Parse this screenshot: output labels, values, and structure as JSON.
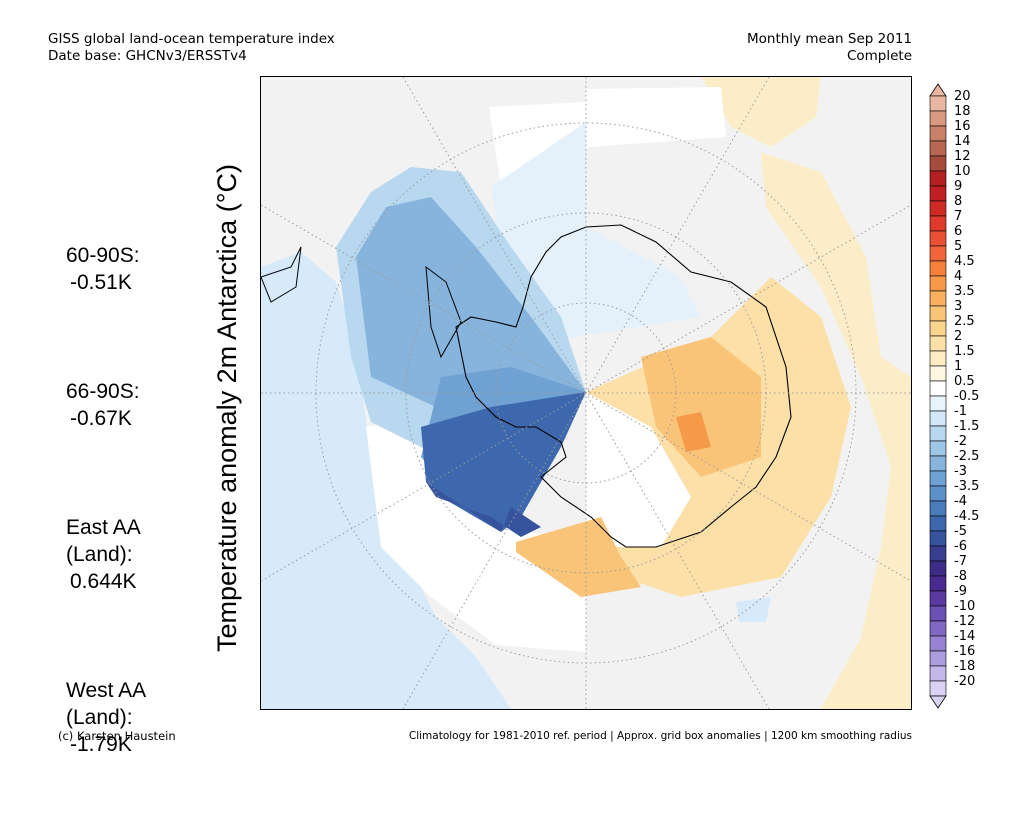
{
  "header": {
    "title_line1": "GISS global land-ocean temperature index",
    "title_line2": "Date base: GHCNv3/ERSSTv4",
    "period_line1": "Monthly mean Sep 2011",
    "period_line2": "Complete"
  },
  "axis_label": "Temperature anomaly 2m Antarctica (°C)",
  "stats": [
    {
      "label": "60-90S:",
      "value": "-0.51K"
    },
    {
      "label": "66-90S:",
      "value": "-0.67K"
    },
    {
      "label": "East AA\n(Land):",
      "value": "0.644K"
    },
    {
      "label": "West AA\n(Land):",
      "value": "-1.79K"
    }
  ],
  "colorbar": {
    "labels": [
      "20",
      "18",
      "16",
      "14",
      "12",
      "10",
      "9",
      "8",
      "7",
      "6",
      "5",
      "4.5",
      "4",
      "3.5",
      "3",
      "2.5",
      "2",
      "1.5",
      "1",
      "0.5",
      "-0.5",
      "-1",
      "-1.5",
      "-2",
      "-2.5",
      "-3",
      "-3.5",
      "-4",
      "-4.5",
      "-5",
      "-6",
      "-7",
      "-8",
      "-9",
      "-10",
      "-12",
      "-14",
      "-16",
      "-18",
      "-20"
    ],
    "colors": [
      "#e9b7a1",
      "#d99a82",
      "#c98068",
      "#b86753",
      "#a54c3e",
      "#b22020",
      "#c02024",
      "#d02a24",
      "#e03a2c",
      "#ea5034",
      "#f0663a",
      "#f4803c",
      "#f69a4a",
      "#f8b060",
      "#fac478",
      "#fbd48e",
      "#fce0a8",
      "#fdecc4",
      "#fdf6e0",
      "#ffffff",
      "#e8f4fc",
      "#d2e8f8",
      "#b8d8f0",
      "#9ec6e6",
      "#86b4dc",
      "#6fa2d2",
      "#5c90c8",
      "#4a7cbc",
      "#3e68ae",
      "#36549e",
      "#3a3e90",
      "#3c2c86",
      "#4a2a90",
      "#5a3aa0",
      "#6c50b4",
      "#8068c4",
      "#9684d2",
      "#ac9ede",
      "#c4b8ea",
      "#dad2f4"
    ]
  },
  "footer": {
    "credit": "(c) Karsten Haustein",
    "note": "Climatology for 1981-2010 ref. period | Approx. grid box anomalies | 1200 km smoothing radius"
  }
}
